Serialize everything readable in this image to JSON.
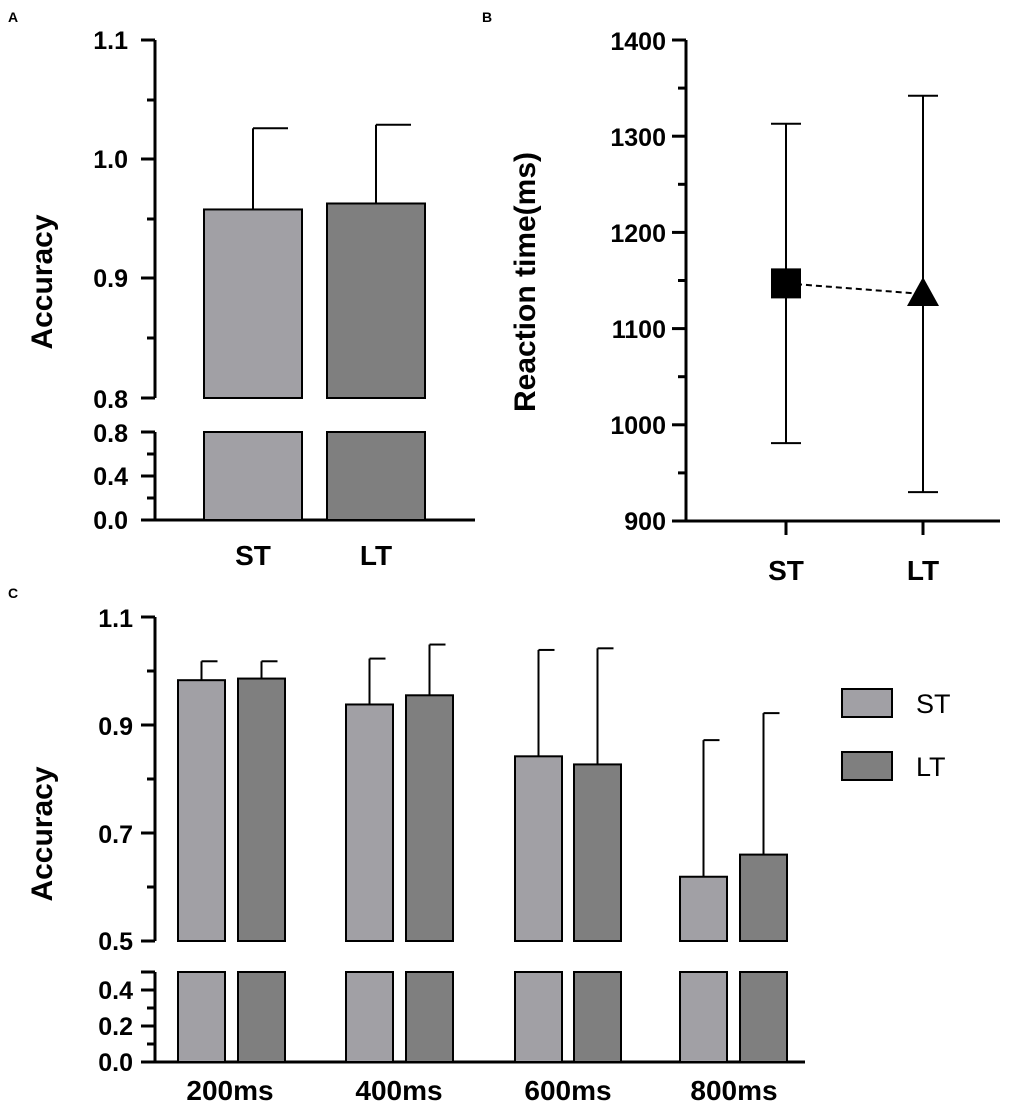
{
  "colors": {
    "ST": "#a1a0a5",
    "LT": "#7f7f7f",
    "axis": "#000000"
  },
  "chart_data": [
    {
      "panel": "A",
      "type": "bar",
      "ylabel": "Accuracy",
      "xlabel": "",
      "categories": [
        "ST",
        "LT"
      ],
      "series": [
        {
          "name": "Accuracy",
          "values": [
            0.958,
            0.963
          ],
          "errors": [
            0.068,
            0.066
          ]
        }
      ],
      "ylim_upper": [
        0.8,
        1.1
      ],
      "ylim_lower": [
        0.0,
        0.8
      ],
      "upper_ticks": [
        "0.8",
        "0.9",
        "1.0",
        "1.1"
      ],
      "lower_ticks": [
        "0.0",
        "0.4",
        "0.8"
      ],
      "axis_break": true
    },
    {
      "panel": "B",
      "type": "scatter",
      "ylabel": "Reaction time(ms)",
      "xlabel": "",
      "categories": [
        "ST",
        "LT"
      ],
      "series": [
        {
          "name": "Reaction time",
          "values": [
            1147,
            1136
          ],
          "errors": [
            166,
            206
          ],
          "markers": [
            "square",
            "triangle"
          ]
        }
      ],
      "ylim": [
        900,
        1400
      ],
      "ticks": [
        "900",
        "1000",
        "1100",
        "1200",
        "1300",
        "1400"
      ],
      "connector": "dashed"
    },
    {
      "panel": "C",
      "type": "bar",
      "ylabel": "Accuracy",
      "xlabel": "",
      "categories": [
        "200ms",
        "400ms",
        "600ms",
        "800ms"
      ],
      "series": [
        {
          "name": "ST",
          "values": [
            0.983,
            0.938,
            0.842,
            0.619
          ],
          "errors": [
            0.035,
            0.085,
            0.197,
            0.253
          ]
        },
        {
          "name": "LT",
          "values": [
            0.986,
            0.955,
            0.827,
            0.66
          ],
          "errors": [
            0.032,
            0.094,
            0.215,
            0.262
          ]
        }
      ],
      "ylim_upper": [
        0.5,
        1.1
      ],
      "ylim_lower": [
        0.0,
        0.5
      ],
      "upper_ticks": [
        "0.5",
        "0.7",
        "0.9",
        "1.1"
      ],
      "lower_ticks": [
        "0.0",
        "0.2",
        "0.4"
      ],
      "axis_break": true,
      "legend": [
        "ST",
        "LT"
      ],
      "legend_position": "right"
    }
  ]
}
